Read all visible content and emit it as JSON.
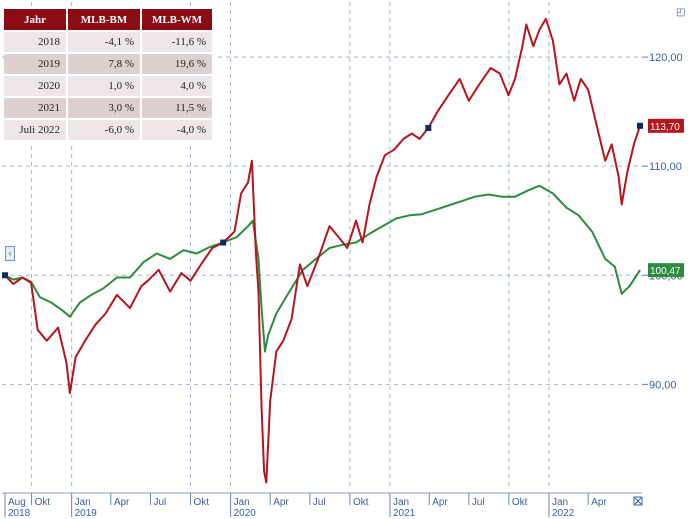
{
  "table": {
    "headers": [
      "Jahr",
      "MLB-BM",
      "MLB-WM"
    ],
    "rows": [
      [
        "2018",
        "-4,1 %",
        "-11,6 %"
      ],
      [
        "2019",
        "7,8 %",
        "19,6 %"
      ],
      [
        "2020",
        "1,0 %",
        "4,0 %"
      ],
      [
        "2021",
        "3,0 %",
        "11,5 %"
      ],
      [
        "Juli 2022",
        "-6,0 %",
        "-4,0 %"
      ]
    ]
  },
  "icons": {
    "top_right": "expand-icon",
    "left": "collapse-left-icon",
    "bottom_right": "close-icon"
  },
  "chart_data": {
    "type": "line",
    "x_axis": {
      "labels": [
        "Aug",
        "Okt",
        "Jan",
        "Apr",
        "Jul",
        "Okt",
        "Jan",
        "Apr",
        "Jul",
        "Okt",
        "Jan",
        "Apr",
        "Jul",
        "Okt",
        "Jan",
        "Apr"
      ],
      "year_labels": [
        {
          "label": "2018",
          "at": "Aug"
        },
        {
          "label": "2019",
          "at": "Jan"
        },
        {
          "label": "2020",
          "at": "Jan"
        },
        {
          "label": "2021",
          "at": "Jan"
        },
        {
          "label": "2022",
          "at": "Jan"
        }
      ],
      "dates": [
        "2018-08",
        "2018-10",
        "2019-01",
        "2019-04",
        "2019-07",
        "2019-10",
        "2020-01",
        "2020-04",
        "2020-07",
        "2020-10",
        "2021-01",
        "2021-04",
        "2021-07",
        "2021-10",
        "2022-01",
        "2022-04"
      ]
    },
    "y_axis": {
      "ticks": [
        "90,00",
        "100,00",
        "110,00",
        "120,00"
      ],
      "tick_values": [
        90,
        100,
        110,
        120
      ],
      "ylim": [
        80.5,
        124.5
      ],
      "position": "right"
    },
    "series": [
      {
        "color": "#b3161d",
        "end_label": "113,70",
        "points": [
          [
            "2018-08-01",
            100.0
          ],
          [
            "2018-08-20",
            99.2
          ],
          [
            "2018-09-10",
            99.8
          ],
          [
            "2018-09-30",
            99.3
          ],
          [
            "2018-10-15",
            95.0
          ],
          [
            "2018-11-05",
            94.0
          ],
          [
            "2018-12-01",
            95.2
          ],
          [
            "2018-12-20",
            92.0
          ],
          [
            "2018-12-28",
            89.2
          ],
          [
            "2019-01-10",
            92.5
          ],
          [
            "2019-02-01",
            94.0
          ],
          [
            "2019-02-25",
            95.5
          ],
          [
            "2019-03-20",
            96.5
          ],
          [
            "2019-04-15",
            98.2
          ],
          [
            "2019-05-15",
            97.0
          ],
          [
            "2019-06-10",
            99.0
          ],
          [
            "2019-06-25",
            99.5
          ],
          [
            "2019-07-20",
            100.5
          ],
          [
            "2019-08-15",
            98.5
          ],
          [
            "2019-09-10",
            100.2
          ],
          [
            "2019-10-01",
            99.5
          ],
          [
            "2019-10-25",
            101.0
          ],
          [
            "2019-11-20",
            102.5
          ],
          [
            "2019-12-15",
            103.0
          ],
          [
            "2020-01-10",
            104.0
          ],
          [
            "2020-01-25",
            107.5
          ],
          [
            "2020-02-10",
            108.5
          ],
          [
            "2020-02-19",
            110.5
          ],
          [
            "2020-02-28",
            102.0
          ],
          [
            "2020-03-05",
            98.5
          ],
          [
            "2020-03-12",
            88.0
          ],
          [
            "2020-03-18",
            82.0
          ],
          [
            "2020-03-23",
            81.0
          ],
          [
            "2020-04-01",
            88.5
          ],
          [
            "2020-04-15",
            93.0
          ],
          [
            "2020-05-01",
            94.0
          ],
          [
            "2020-05-20",
            96.0
          ],
          [
            "2020-06-08",
            101.0
          ],
          [
            "2020-06-25",
            99.0
          ],
          [
            "2020-07-20",
            101.5
          ],
          [
            "2020-08-15",
            104.5
          ],
          [
            "2020-09-05",
            103.5
          ],
          [
            "2020-09-25",
            102.5
          ],
          [
            "2020-10-15",
            105.0
          ],
          [
            "2020-10-30",
            103.0
          ],
          [
            "2020-11-15",
            106.5
          ],
          [
            "2020-12-01",
            109.0
          ],
          [
            "2020-12-20",
            111.0
          ],
          [
            "2021-01-10",
            111.5
          ],
          [
            "2021-02-01",
            112.5
          ],
          [
            "2021-02-20",
            113.0
          ],
          [
            "2021-03-10",
            112.5
          ],
          [
            "2021-03-30",
            113.5
          ],
          [
            "2021-04-20",
            115.0
          ],
          [
            "2021-05-15",
            116.5
          ],
          [
            "2021-06-10",
            118.0
          ],
          [
            "2021-07-01",
            116.0
          ],
          [
            "2021-07-25",
            117.5
          ],
          [
            "2021-08-20",
            119.0
          ],
          [
            "2021-09-10",
            118.5
          ],
          [
            "2021-09-30",
            116.5
          ],
          [
            "2021-10-15",
            118.0
          ],
          [
            "2021-11-01",
            121.0
          ],
          [
            "2021-11-10",
            123.0
          ],
          [
            "2021-11-26",
            121.0
          ],
          [
            "2021-12-10",
            122.5
          ],
          [
            "2021-12-25",
            123.5
          ],
          [
            "2022-01-10",
            121.5
          ],
          [
            "2022-01-25",
            117.5
          ],
          [
            "2022-02-10",
            118.5
          ],
          [
            "2022-02-28",
            116.0
          ],
          [
            "2022-03-15",
            118.0
          ],
          [
            "2022-04-01",
            117.0
          ],
          [
            "2022-04-25",
            113.0
          ],
          [
            "2022-05-10",
            110.5
          ],
          [
            "2022-05-25",
            112.0
          ],
          [
            "2022-06-10",
            109.0
          ],
          [
            "2022-06-17",
            106.5
          ],
          [
            "2022-06-30",
            109.5
          ],
          [
            "2022-07-15",
            112.0
          ],
          [
            "2022-07-29",
            113.7
          ]
        ]
      },
      {
        "color": "#2e8b3e",
        "end_label": "100,47",
        "points": [
          [
            "2018-08-01",
            100.0
          ],
          [
            "2018-08-20",
            99.6
          ],
          [
            "2018-09-10",
            99.8
          ],
          [
            "2018-09-30",
            99.4
          ],
          [
            "2018-10-20",
            98.0
          ],
          [
            "2018-11-15",
            97.5
          ],
          [
            "2018-12-10",
            96.8
          ],
          [
            "2018-12-28",
            96.2
          ],
          [
            "2019-01-20",
            97.5
          ],
          [
            "2019-02-15",
            98.2
          ],
          [
            "2019-03-15",
            98.8
          ],
          [
            "2019-04-15",
            99.8
          ],
          [
            "2019-05-15",
            99.8
          ],
          [
            "2019-06-15",
            101.2
          ],
          [
            "2019-07-15",
            102.0
          ],
          [
            "2019-08-15",
            101.5
          ],
          [
            "2019-09-15",
            102.3
          ],
          [
            "2019-10-15",
            102.0
          ],
          [
            "2019-11-15",
            102.6
          ],
          [
            "2019-12-15",
            103.0
          ],
          [
            "2020-01-15",
            103.5
          ],
          [
            "2020-02-10",
            104.5
          ],
          [
            "2020-02-21",
            105.0
          ],
          [
            "2020-03-05",
            101.5
          ],
          [
            "2020-03-12",
            97.0
          ],
          [
            "2020-03-20",
            93.0
          ],
          [
            "2020-03-27",
            94.5
          ],
          [
            "2020-04-15",
            96.5
          ],
          [
            "2020-05-15",
            98.5
          ],
          [
            "2020-06-15",
            100.5
          ],
          [
            "2020-07-15",
            101.5
          ],
          [
            "2020-08-15",
            102.5
          ],
          [
            "2020-09-15",
            102.8
          ],
          [
            "2020-10-15",
            103.0
          ],
          [
            "2020-11-15",
            103.8
          ],
          [
            "2020-12-15",
            104.5
          ],
          [
            "2021-01-15",
            105.2
          ],
          [
            "2021-02-15",
            105.5
          ],
          [
            "2021-03-15",
            105.6
          ],
          [
            "2021-04-15",
            106.0
          ],
          [
            "2021-05-15",
            106.4
          ],
          [
            "2021-06-15",
            106.8
          ],
          [
            "2021-07-15",
            107.2
          ],
          [
            "2021-08-15",
            107.4
          ],
          [
            "2021-09-15",
            107.2
          ],
          [
            "2021-10-15",
            107.2
          ],
          [
            "2021-11-15",
            107.8
          ],
          [
            "2021-12-10",
            108.2
          ],
          [
            "2022-01-10",
            107.5
          ],
          [
            "2022-02-10",
            106.2
          ],
          [
            "2022-03-10",
            105.5
          ],
          [
            "2022-04-10",
            104.0
          ],
          [
            "2022-05-10",
            101.5
          ],
          [
            "2022-06-01",
            100.8
          ],
          [
            "2022-06-17",
            98.3
          ],
          [
            "2022-07-05",
            99.0
          ],
          [
            "2022-07-29",
            100.47
          ]
        ]
      }
    ],
    "grid": true,
    "legend": "none"
  }
}
